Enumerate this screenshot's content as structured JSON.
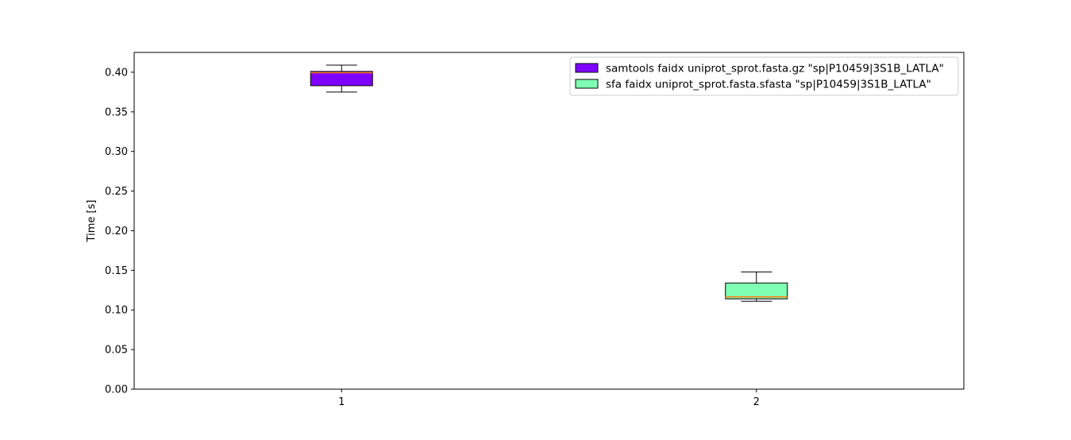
{
  "chart_data": {
    "type": "box",
    "title": "",
    "xlabel": "",
    "ylabel": "Time [s]",
    "ylim": [
      0.0,
      0.425
    ],
    "xlim": [
      0.5,
      2.5
    ],
    "yticks": [
      "0.00",
      "0.05",
      "0.10",
      "0.15",
      "0.20",
      "0.25",
      "0.30",
      "0.35",
      "0.40"
    ],
    "ytick_values": [
      0.0,
      0.05,
      0.1,
      0.15,
      0.2,
      0.25,
      0.3,
      0.35,
      0.4
    ],
    "xticks": [
      "1",
      "2"
    ],
    "xtick_values": [
      1,
      2
    ],
    "legend_position": "top-right",
    "boxes": [
      {
        "name": "samtools faidx uniprot_sprot.fasta.gz \"sp|P10459|3S1B_LATLA\"",
        "position": 1,
        "whisker_low": 0.375,
        "q1": 0.383,
        "median": 0.3995,
        "q3": 0.401,
        "whisker_high": 0.409,
        "color": "#8000ff",
        "median_color": "#ff7f0e"
      },
      {
        "name": "sfa faidx uniprot_sprot.fasta.sfasta \"sp|P10459|3S1B_LATLA\"",
        "position": 2,
        "whisker_low": 0.111,
        "q1": 0.114,
        "median": 0.1165,
        "q3": 0.134,
        "whisker_high": 0.148,
        "color": "#80ffb4",
        "median_color": "#ff7f0e"
      }
    ]
  }
}
